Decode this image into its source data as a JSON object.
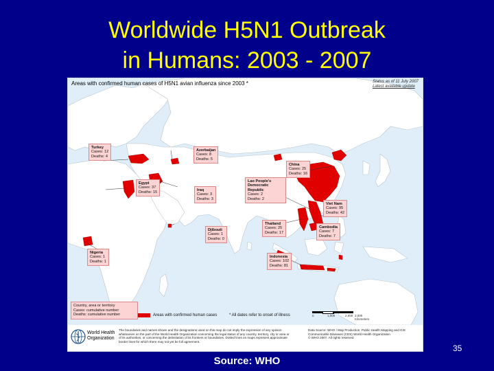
{
  "slide": {
    "title_line1": "Worldwide H5N1 Outbreak",
    "title_line2": "in Humans:  2003 - 2007",
    "page_number": "35",
    "source": "Source: WHO"
  },
  "map": {
    "header": "Areas with confirmed human cases of H5N1 avian influenza since 2003 *",
    "status_line1": "Status as of 11 July 2007",
    "status_line2": "Latest available update",
    "colors": {
      "ocean": "#dfeef8",
      "land": "#ffffff",
      "affected": "#e00000",
      "callout_bg": "#fcd4d4"
    },
    "callouts": [
      {
        "id": "turkey",
        "name": "Turkey",
        "cases": "Cases: 12",
        "deaths": "Deaths: 4"
      },
      {
        "id": "azerbaijan",
        "name": "Azerbaijan",
        "cases": "Cases: 8",
        "deaths": "Deaths: 5"
      },
      {
        "id": "china",
        "name": "China",
        "cases": "Cases: 25",
        "deaths": "Deaths: 16"
      },
      {
        "id": "laos",
        "name": "Lao People's Democratic Republic",
        "cases": "Cases: 2",
        "deaths": "Deaths: 2"
      },
      {
        "id": "iraq",
        "name": "Iraq",
        "cases": "Cases: 3",
        "deaths": "Deaths: 3"
      },
      {
        "id": "egypt",
        "name": "Egypt",
        "cases": "Cases: 37",
        "deaths": "Deaths: 15"
      },
      {
        "id": "vietnam",
        "name": "Viet Nam",
        "cases": "Cases: 95",
        "deaths": "Deaths: 42"
      },
      {
        "id": "thailand",
        "name": "Thailand",
        "cases": "Cases: 25",
        "deaths": "Deaths: 17"
      },
      {
        "id": "cambodia",
        "name": "Cambodia",
        "cases": "Cases: 7",
        "deaths": "Deaths: 7"
      },
      {
        "id": "djibouti",
        "name": "Djibouti",
        "cases": "Cases: 1",
        "deaths": "Deaths: 0"
      },
      {
        "id": "nigeria",
        "name": "Nigeria",
        "cases": "Cases: 1",
        "deaths": "Deaths: 1"
      },
      {
        "id": "indonesia",
        "name": "Indonesia",
        "cases": "Cases: 102",
        "deaths": "Deaths: 81"
      }
    ],
    "legend": {
      "line1": "Country, area or territory",
      "line2": "Cases: cumulative number",
      "line3": "Deaths: cumulative number",
      "swatch_label": "Areas with confirmed human cases",
      "note": "* All dates refer to onset of illness"
    },
    "scale_labels": [
      "0",
      "1,000",
      "2,000",
      "3,000 Kilometers"
    ],
    "footer": {
      "org_line1": "World Health",
      "org_line2": "Organization",
      "disclaimer": "The boundaries and names shown and the designations used on this map do not imply the expression of any opinion whatsoever on the part of the World Health Organization concerning the legal status of any country, territory, city or area or of its authorities, or concerning the delimitation of its frontiers or boundaries. Dotted lines on maps represent approximate border lines for which there may not yet be full agreement.",
      "credit1": "Data Source: WHO / Map Production: Public Health Mapping and GIS",
      "credit2": "Communicable Diseases (CDS) World Health Organization",
      "credit3": "© WHO 2007. All rights reserved"
    }
  }
}
